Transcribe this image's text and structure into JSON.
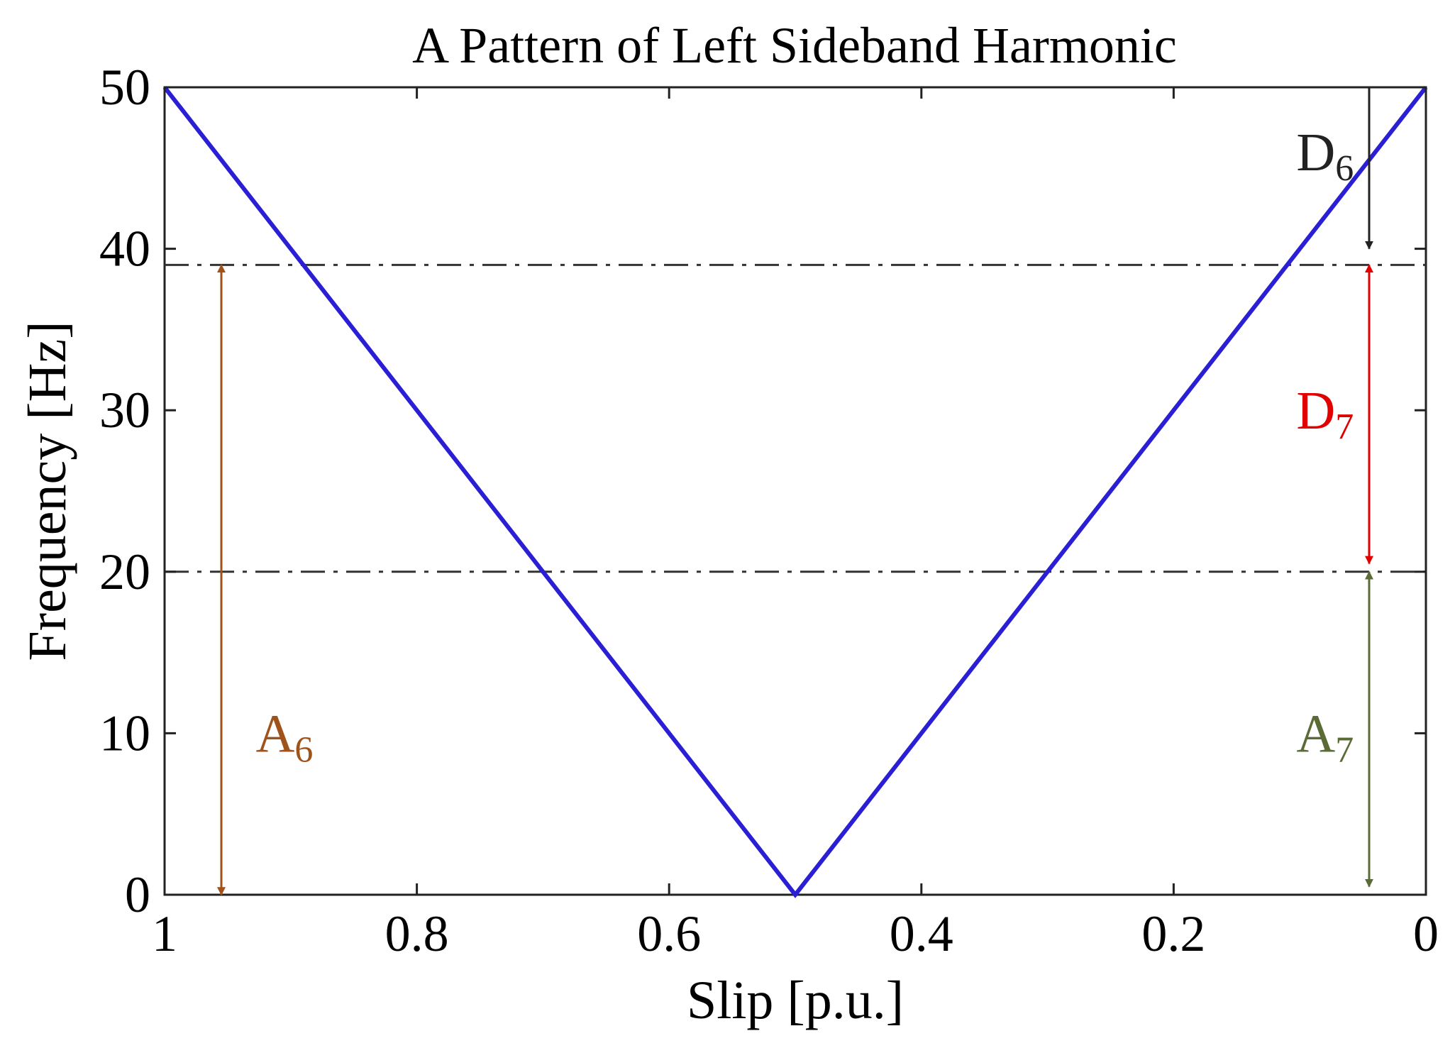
{
  "chart_data": {
    "type": "line",
    "title": "A Pattern of Left Sideband Harmonic",
    "xlabel": "Slip [p.u.]",
    "ylabel": "Frequency [Hz]",
    "xlim": [
      1,
      0
    ],
    "ylim": [
      0,
      50
    ],
    "x_reversed": true,
    "grid": false,
    "x_ticks": [
      1,
      0.8,
      0.6,
      0.4,
      0.2,
      0
    ],
    "x_tick_labels": [
      "1",
      "0.8",
      "0.6",
      "0.4",
      "0.2",
      "0"
    ],
    "y_ticks": [
      0,
      10,
      20,
      30,
      40,
      50
    ],
    "y_tick_labels": [
      "0",
      "10",
      "20",
      "30",
      "40",
      "50"
    ],
    "series": [
      {
        "x": [
          1,
          0.5,
          0
        ],
        "y": [
          50,
          0,
          50
        ],
        "color": "#2b1fd6"
      }
    ],
    "reference_lines": [
      {
        "y": 39,
        "style": "dash-dot",
        "color": "#333333"
      },
      {
        "y": 20,
        "style": "dash-dot",
        "color": "#333333"
      }
    ],
    "annotations": [
      {
        "base": "A",
        "sub": "6",
        "color": "#a0521b",
        "x": 0.955,
        "y_from": 39,
        "y_to": 0,
        "label_x": 0.905,
        "label_y": 10,
        "arrow": "double"
      },
      {
        "base": "D",
        "sub": "6",
        "color": "#222222",
        "x": 0.045,
        "y_from": 50,
        "y_to": 40,
        "label_x": 0.08,
        "label_y": 46,
        "arrow": "down"
      },
      {
        "base": "D",
        "sub": "7",
        "color": "#e00000",
        "x": 0.045,
        "y_from": 39,
        "y_to": 20.5,
        "label_x": 0.08,
        "label_y": 30,
        "arrow": "double"
      },
      {
        "base": "A",
        "sub": "7",
        "color": "#5a6b35",
        "x": 0.045,
        "y_from": 20,
        "y_to": 0.5,
        "label_x": 0.08,
        "label_y": 10,
        "arrow": "double"
      }
    ]
  }
}
